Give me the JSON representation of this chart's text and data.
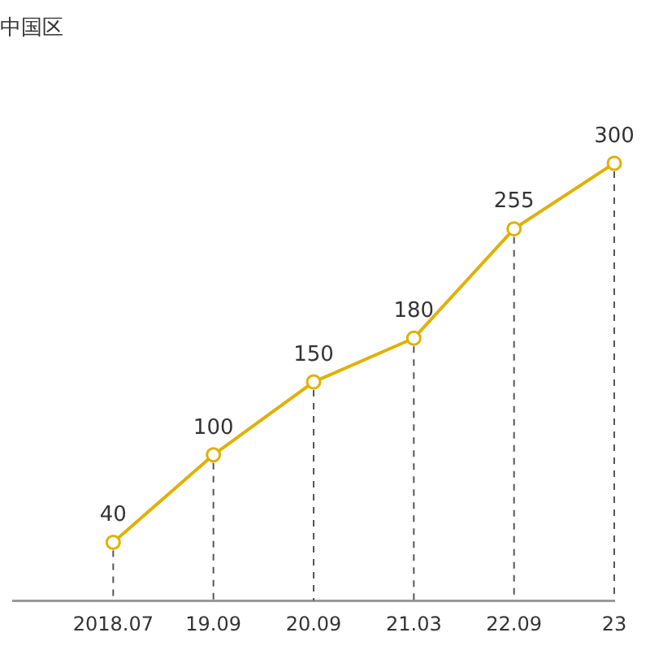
{
  "chart_data": {
    "type": "line",
    "title": "中国区",
    "categories": [
      null,
      "2018.07",
      "19.09",
      "20.09",
      "21.03",
      "22.09",
      "23"
    ],
    "series": [
      {
        "color": "#e0b000",
        "values": [
          null,
          40,
          100,
          150,
          180,
          255,
          300
        ]
      }
    ],
    "data_labels": true,
    "marker": "circle",
    "grid": "x",
    "legend": false,
    "tick_labels": "x"
  }
}
